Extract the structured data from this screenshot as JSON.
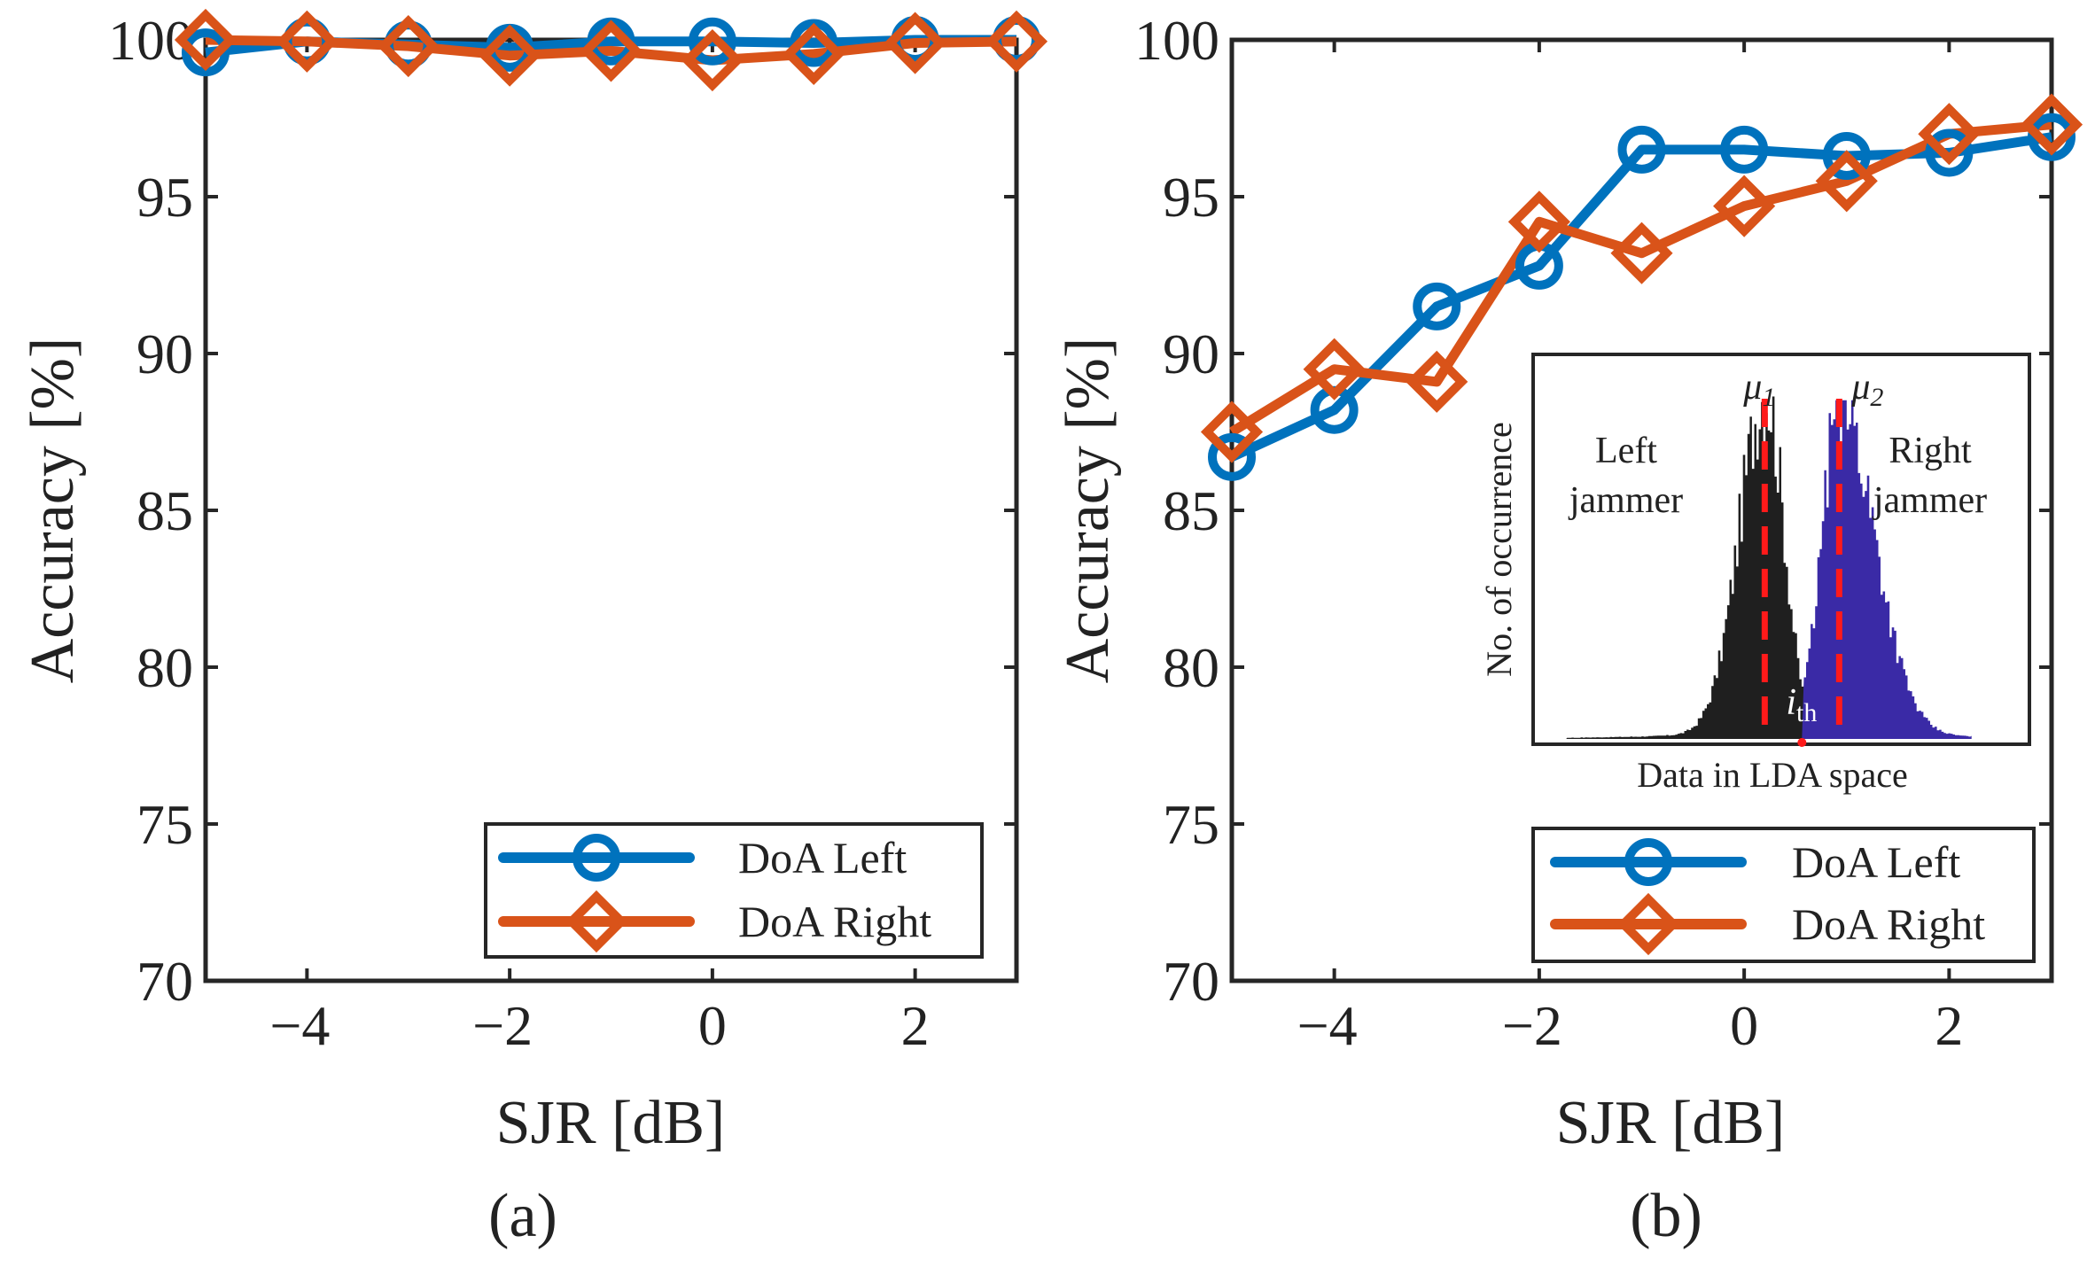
{
  "chart_data": [
    {
      "type": "line",
      "caption": "(a)",
      "xlabel": "SJR [dB]",
      "ylabel": "Accuracy [%]",
      "xlim": [
        -5,
        3
      ],
      "ylim": [
        70,
        100
      ],
      "xticks": [
        -4,
        -2,
        0,
        2
      ],
      "xtick_labels": [
        "−4",
        "−2",
        "0",
        "2"
      ],
      "yticks": [
        70,
        75,
        80,
        85,
        90,
        95,
        100
      ],
      "ytick_labels": [
        "70",
        "75",
        "80",
        "85",
        "90",
        "95",
        "100"
      ],
      "grid": false,
      "legend_position": "bottom-right",
      "x": [
        -5,
        -4,
        -3,
        -2,
        -1,
        0,
        1,
        2,
        3
      ],
      "series": [
        {
          "name": "DoA Left",
          "marker": "circle",
          "color": "#0072BD",
          "values": [
            99.6,
            99.95,
            99.85,
            99.75,
            99.95,
            99.95,
            99.9,
            100,
            100
          ]
        },
        {
          "name": "DoA Right",
          "marker": "diamond",
          "color": "#D95319",
          "values": [
            100,
            99.95,
            99.8,
            99.5,
            99.65,
            99.35,
            99.55,
            99.9,
            99.95
          ]
        }
      ]
    },
    {
      "type": "line",
      "caption": "(b)",
      "xlabel": "SJR [dB]",
      "ylabel": "Accuracy [%]",
      "xlim": [
        -5,
        3
      ],
      "ylim": [
        70,
        100
      ],
      "xticks": [
        -4,
        -2,
        0,
        2
      ],
      "xtick_labels": [
        "−4",
        "−2",
        "0",
        "2"
      ],
      "yticks": [
        70,
        75,
        80,
        85,
        90,
        95,
        100
      ],
      "ytick_labels": [
        "70",
        "75",
        "80",
        "85",
        "90",
        "95",
        "100"
      ],
      "grid": false,
      "legend_position": "bottom-right",
      "x": [
        -5,
        -4,
        -3,
        -2,
        -1,
        0,
        1,
        2,
        3
      ],
      "series": [
        {
          "name": "DoA Left",
          "marker": "circle",
          "color": "#0072BD",
          "values": [
            86.7,
            88.2,
            91.5,
            92.8,
            96.5,
            96.5,
            96.3,
            96.4,
            96.9
          ]
        },
        {
          "name": "DoA Right",
          "marker": "diamond",
          "color": "#D95319",
          "values": [
            87.5,
            89.5,
            89.1,
            94.2,
            93.2,
            94.7,
            95.5,
            97.0,
            97.3
          ]
        }
      ],
      "inset": {
        "type": "histogram",
        "xlabel": "Data in LDA space",
        "ylabel": "No. of occurrence",
        "left_annotation": [
          "Left",
          "jammer"
        ],
        "right_annotation": [
          "Right",
          "jammer"
        ],
        "mu1_label": "μ",
        "mu1_sub": "1",
        "mu2_label": "μ",
        "mu2_sub": "2",
        "threshold_label": "i",
        "threshold_sub": "th",
        "left_color": "#1f1f1f",
        "right_color": "#3a2aa6",
        "mean_line_color": "#ff1a1a",
        "xlim": [
          -3,
          3
        ],
        "mu1": -0.2,
        "mu2": 0.7,
        "threshold": 0.25,
        "left_peak": 1.0,
        "right_peak": 0.97
      }
    }
  ]
}
